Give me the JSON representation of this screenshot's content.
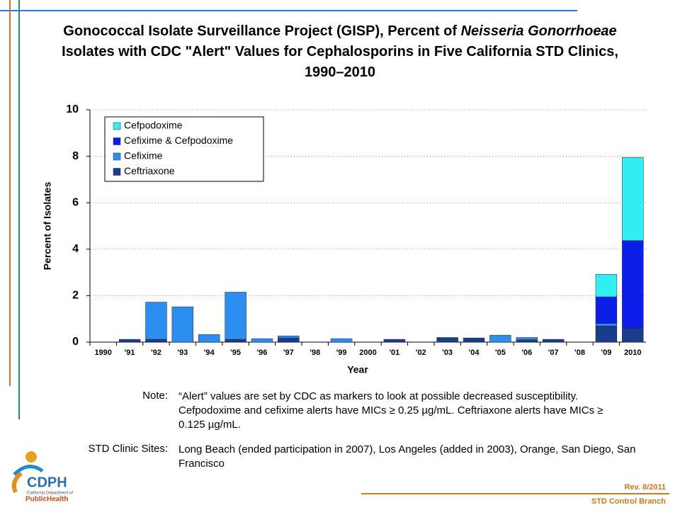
{
  "chart_data": {
    "type": "stacked-bar",
    "title": [
      "Gonococcal Isolate Surveillance Project (GISP), Percent of ",
      "Neisseria Gonorrhoeae",
      " Isolates with CDC \"Alert\" Values for Cephalosporins in Five California STD Clinics, 1990–2010"
    ],
    "x_label": "Year",
    "y_label": "Percent of Isolates",
    "categories": [
      "1990",
      "'91",
      "'92",
      "'93",
      "'94",
      "'95",
      "'96",
      "'97",
      "'98",
      "'99",
      "2000",
      "'01",
      "'02",
      "'03",
      "'04",
      "'05",
      "'06",
      "'07",
      "'08",
      "'09",
      "2010"
    ],
    "series": [
      {
        "name": "Ceftriaxone",
        "color": "#1a3c8c",
        "values": [
          0,
          0.12,
          0.12,
          0,
          0,
          0.12,
          0,
          0.17,
          0,
          0,
          0,
          0.12,
          0,
          0.2,
          0.18,
          0,
          0.1,
          0.12,
          0,
          0.7,
          0.6
        ]
      },
      {
        "name": "Cefixime",
        "color": "#2c8ff0",
        "values": [
          0,
          0,
          1.6,
          1.52,
          0.33,
          2.03,
          0.15,
          0.1,
          0,
          0.15,
          0,
          0,
          0,
          0,
          0,
          0.3,
          0.1,
          0,
          0,
          0.1,
          0
        ]
      },
      {
        "name": "Cefixime & Cefpodoxime",
        "color": "#0d1ee8",
        "values": [
          0,
          0,
          0,
          0,
          0,
          0,
          0,
          0,
          0,
          0,
          0,
          0,
          0,
          0,
          0,
          0,
          0,
          0,
          0,
          1.15,
          3.77
        ]
      },
      {
        "name": "Cefpodoxime",
        "color": "#33eef2",
        "values": [
          0,
          0,
          0,
          0,
          0,
          0,
          0,
          0,
          0,
          0,
          0,
          0,
          0,
          0,
          0,
          0,
          0,
          0,
          0,
          0.97,
          3.58
        ]
      }
    ],
    "ylim": [
      0,
      10
    ],
    "yticks": [
      0,
      2,
      4,
      6,
      8,
      10
    ],
    "grid": true,
    "legend": "top-left"
  },
  "notes": [
    {
      "label": "Note:",
      "text": "“Alert” values are set by CDC as markers to look at possible decreased susceptibility. Cefpodoxime and cefixime alerts have MICs ≥ 0.25 µg/mL. Ceftriaxone alerts have MICs ≥ 0.125 µg/mL."
    },
    {
      "label": "STD Clinic Sites:",
      "text": "Long Beach (ended participation in 2007), Los Angeles (added in 2003), Orange, San Diego, San Francisco"
    }
  ],
  "logo": {
    "name": "CDPH",
    "line1": "California Department of",
    "line2": "PublicHealth"
  },
  "footer": {
    "revision": "Rev. 8/2011",
    "branch": "STD Control Branch"
  }
}
